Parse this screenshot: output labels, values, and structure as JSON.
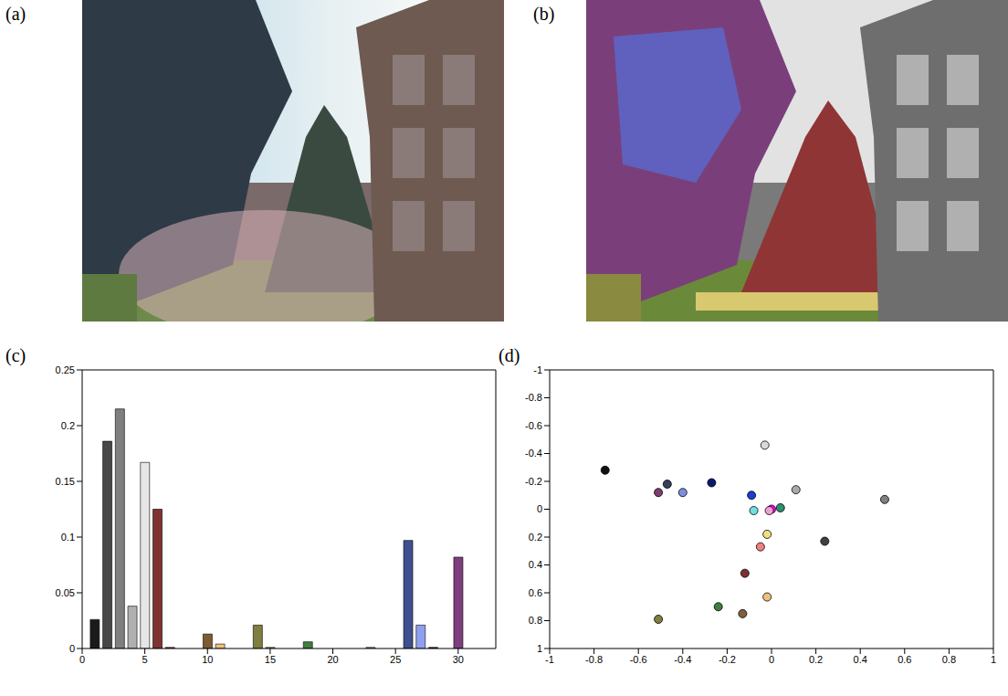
{
  "chart_data": [
    {
      "type": "image",
      "label": "(a)"
    },
    {
      "type": "image",
      "label": "(b)"
    },
    {
      "type": "bar",
      "label": "(c)",
      "x": [
        1,
        2,
        3,
        4,
        5,
        6,
        7,
        8,
        9,
        10,
        11,
        12,
        13,
        14,
        15,
        16,
        17,
        18,
        19,
        20,
        21,
        22,
        23,
        24,
        25,
        26,
        27,
        28,
        29,
        30,
        31,
        32
      ],
      "values": [
        0.026,
        0.186,
        0.215,
        0.038,
        0.167,
        0.125,
        0.001,
        0,
        0,
        0.013,
        0.004,
        0,
        0,
        0.021,
        0.001,
        0,
        0,
        0.006,
        0,
        0,
        0,
        0,
        0.001,
        0,
        0,
        0.097,
        0.021,
        0.001,
        0,
        0.082,
        0,
        0
      ],
      "colors": [
        "#1a1a1a",
        "#474747",
        "#7f7f7f",
        "#b0b0b0",
        "#e6e6e6",
        "#7f3333",
        "#a04040",
        "#d06060",
        "#f09090",
        "#7f5a33",
        "#f0c080",
        "#c09050",
        "#505020",
        "#7f7f3f",
        "#b0b060",
        "#e0e090",
        "#204020",
        "#3f7f3f",
        "#60b060",
        "#90e090",
        "#206060",
        "#3f7f7f",
        "#60b0b0",
        "#90e0e0",
        "#202050",
        "#3f4f8f",
        "#8f9fef",
        "#101050",
        "#502050",
        "#7f3f7f",
        "#b060b0",
        "#e090e0"
      ],
      "xlim": [
        0,
        33
      ],
      "xticks": [
        0,
        5,
        10,
        15,
        20,
        25,
        30
      ],
      "ylim": [
        0,
        0.25
      ],
      "yticks": [
        0,
        0.05,
        0.1,
        0.15,
        0.2,
        0.25
      ]
    },
    {
      "type": "scatter",
      "label": "(d)",
      "marker": "circle",
      "x": [
        -0.75,
        -0.47,
        -0.51,
        -0.4,
        -0.27,
        -0.03,
        0.11,
        0.51,
        -0.09,
        -0.08,
        0,
        -0.01,
        0.04,
        0.24,
        -0.02,
        -0.05,
        -0.12,
        -0.02,
        -0.24,
        -0.13,
        -0.51
      ],
      "y": [
        -0.28,
        -0.18,
        -0.12,
        -0.12,
        -0.19,
        -0.46,
        -0.14,
        -0.07,
        -0.1,
        0.01,
        0,
        0.01,
        -0.01,
        0.23,
        0.18,
        0.27,
        0.46,
        0.63,
        0.7,
        0.75,
        0.79
      ],
      "colors": [
        "#111111",
        "#3a3f5f",
        "#7a3f70",
        "#7f8fe0",
        "#0a1a70",
        "#d8d8d8",
        "#aaaaaa",
        "#7f7f7f",
        "#1a3fd0",
        "#70e0e0",
        "#ff00ff",
        "#f0a0d0",
        "#2f8f70",
        "#404040",
        "#f0e080",
        "#f08080",
        "#7f2f2f",
        "#f0c080",
        "#3f7f3f",
        "#7f5f3f",
        "#7f7f3f"
      ],
      "xlim": [
        -1,
        1
      ],
      "xticks": [
        -1,
        -0.8,
        -0.6,
        -0.4,
        -0.2,
        0,
        0.2,
        0.4,
        0.6,
        0.8,
        1
      ],
      "ylim": [
        1,
        -1
      ],
      "yticks": [
        -1,
        -0.8,
        -0.6,
        -0.4,
        -0.2,
        0,
        0.2,
        0.4,
        0.6,
        0.8,
        1
      ]
    }
  ]
}
